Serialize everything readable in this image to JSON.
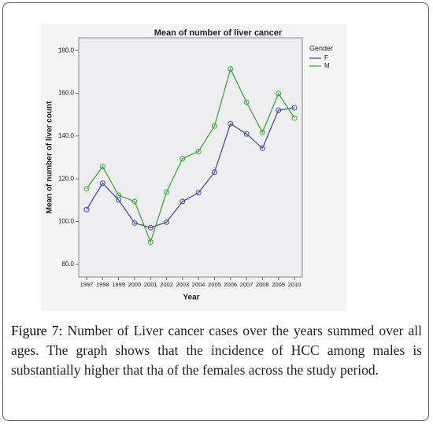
{
  "chart_data": {
    "type": "line",
    "title": "Mean of number of liver cancer",
    "x_label": "Year",
    "y_label": "Mean of number of liver count",
    "legend_title": "Gender",
    "legend_position": "right",
    "categories": [
      "1997",
      "1998",
      "1999",
      "2000",
      "2001",
      "2002",
      "2003",
      "2004",
      "2005",
      "2006",
      "2007",
      "2008",
      "2009",
      "2010"
    ],
    "series": [
      {
        "name": "F",
        "color": "#4a4fa3",
        "values": [
          105.6,
          117.9,
          110.1,
          99.3,
          97.1,
          99.7,
          109.4,
          113.5,
          123.1,
          145.8,
          141.0,
          134.3,
          152.1,
          153.2
        ]
      },
      {
        "name": "M",
        "color": "#3daa3d",
        "values": [
          115.3,
          125.7,
          112.3,
          109.4,
          90.4,
          113.8,
          129.4,
          132.8,
          144.7,
          171.4,
          155.8,
          141.7,
          159.9,
          148.4
        ]
      }
    ],
    "ylim": [
      74,
      186
    ],
    "yticks": [
      {
        "value": 80,
        "label": "80.0"
      },
      {
        "value": 100,
        "label": "100.0"
      },
      {
        "value": 120,
        "label": "120.0"
      },
      {
        "value": 140,
        "label": "140.0"
      },
      {
        "value": 160,
        "label": "160.0"
      },
      {
        "value": 180,
        "label": "180.0"
      }
    ]
  },
  "caption": {
    "label": "Figure 7:",
    "text": "Number of Liver cancer cases over the years summed over all ages. The graph shows that the incidence of HCC among males is substantially higher that tha of the females across the study period."
  }
}
